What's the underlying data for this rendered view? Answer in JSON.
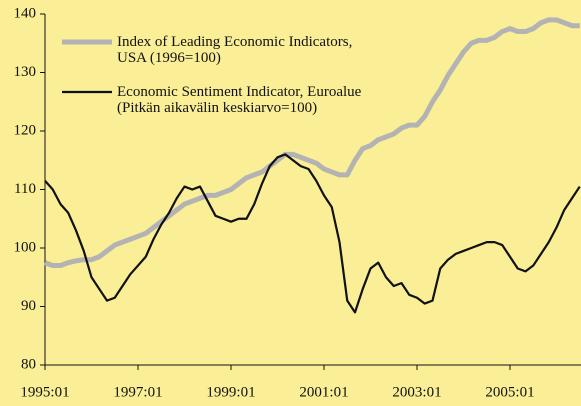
{
  "chart_data": {
    "type": "line",
    "x": [
      "1995:01",
      "1995:03",
      "1995:05",
      "1995:07",
      "1995:09",
      "1995:11",
      "1996:01",
      "1996:03",
      "1996:05",
      "1996:07",
      "1996:09",
      "1996:11",
      "1997:01",
      "1997:03",
      "1997:05",
      "1997:07",
      "1997:09",
      "1997:11",
      "1998:01",
      "1998:03",
      "1998:05",
      "1998:07",
      "1998:09",
      "1998:11",
      "1999:01",
      "1999:03",
      "1999:05",
      "1999:07",
      "1999:09",
      "1999:11",
      "2000:01",
      "2000:03",
      "2000:05",
      "2000:07",
      "2000:09",
      "2000:11",
      "2001:01",
      "2001:03",
      "2001:05",
      "2001:07",
      "2001:09",
      "2001:11",
      "2002:01",
      "2002:03",
      "2002:05",
      "2002:07",
      "2002:09",
      "2002:11",
      "2003:01",
      "2003:03",
      "2003:05",
      "2003:07",
      "2003:09",
      "2003:11",
      "2004:01",
      "2004:03",
      "2004:05",
      "2004:07",
      "2004:09",
      "2004:11",
      "2005:01",
      "2005:03",
      "2005:05",
      "2005:07",
      "2005:09",
      "2005:11",
      "2006:01",
      "2006:03",
      "2006:05",
      "2006:07"
    ],
    "series": [
      {
        "name": "Index of Leading Economic Indicators,\nUSA (1996=100)",
        "color": "#b3b3b3",
        "values": [
          97.5,
          97,
          97,
          97.5,
          97.8,
          98,
          98,
          98.5,
          99.5,
          100.5,
          101,
          101.5,
          102,
          102.5,
          103.5,
          104.5,
          105.5,
          106.5,
          107.5,
          108,
          108.5,
          109,
          109,
          109.5,
          110,
          111,
          112,
          112.5,
          113,
          114,
          115,
          116,
          116,
          115.5,
          115,
          114.5,
          113.5,
          113,
          112.5,
          112.5,
          115,
          117,
          117.5,
          118.5,
          119,
          119.5,
          120.5,
          121,
          121,
          122.5,
          125,
          127,
          129.5,
          131.5,
          133.5,
          135,
          135.5,
          135.5,
          136,
          137,
          137.5,
          137,
          137,
          137.5,
          138.5,
          139,
          139,
          138.5,
          138,
          138
        ]
      },
      {
        "name": "Economic Sentiment Indicator, Euroalue\n(Pitkän aikavälin keskiarvo=100)",
        "color": "#111111",
        "values": [
          111.5,
          110,
          107.5,
          106,
          103,
          99.5,
          95,
          93,
          91,
          91.5,
          93.5,
          95.5,
          97,
          98.5,
          101.5,
          104,
          106,
          108.5,
          110.5,
          110,
          110.5,
          108,
          105.5,
          105,
          104.5,
          105,
          105,
          107.5,
          111,
          114,
          115.5,
          116,
          115,
          114,
          113.5,
          111.5,
          109,
          107,
          101,
          91,
          89,
          93,
          96.5,
          97.5,
          95,
          93.5,
          94,
          92,
          91.5,
          90.5,
          91,
          96.5,
          98,
          99,
          99.5,
          100,
          100.5,
          101,
          101,
          100.5,
          98.5,
          96.5,
          96,
          97,
          99,
          101,
          103.5,
          106.5,
          108.5,
          110.5
        ]
      }
    ],
    "xticks": [
      "1995:01",
      "1997:01",
      "1999:01",
      "2001:01",
      "2003:01",
      "2005:01"
    ],
    "ylim": [
      80,
      140
    ],
    "yticks": [
      80,
      90,
      100,
      110,
      120,
      130,
      140
    ],
    "grid": false
  }
}
